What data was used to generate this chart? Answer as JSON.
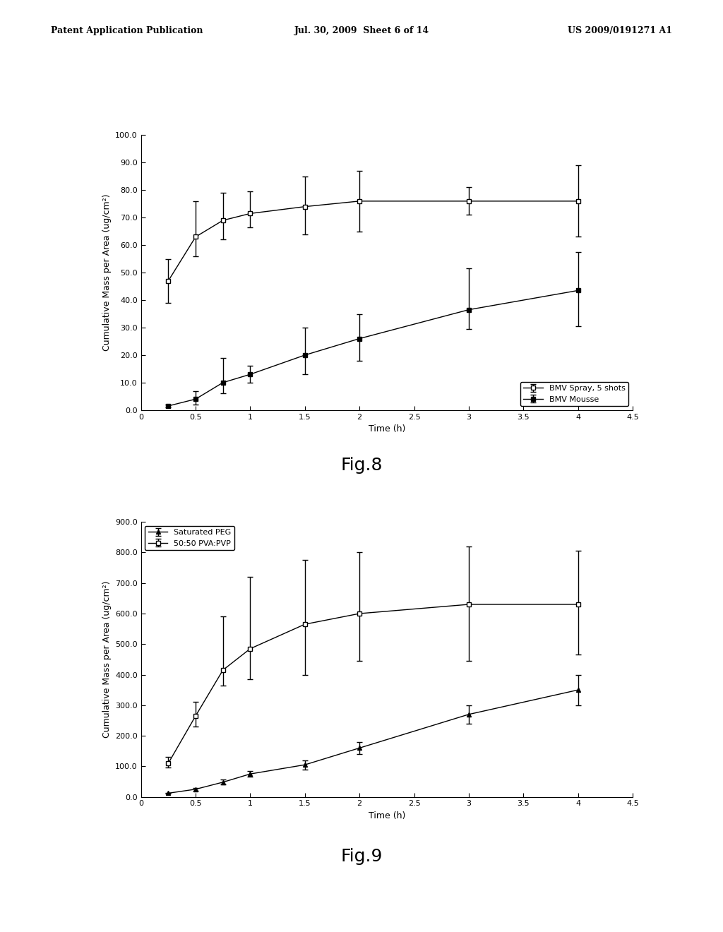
{
  "header_left": "Patent Application Publication",
  "header_center": "Jul. 30, 2009  Sheet 6 of 14",
  "header_right": "US 2009/0191271 A1",
  "fig8": {
    "title": "Fig.8",
    "xlabel": "Time (h)",
    "ylabel": "Cumulative Mass per Area (ug/cm²)",
    "xlim": [
      0,
      4.5
    ],
    "ylim": [
      0,
      100
    ],
    "yticks": [
      0,
      10,
      20,
      30,
      40,
      50,
      60,
      70,
      80,
      90,
      100
    ],
    "ytick_labels": [
      "0.0",
      "10.0",
      "20.0",
      "30.0",
      "40.0",
      "50.0",
      "60.0",
      "70.0",
      "80.0",
      "90.0",
      "100.0"
    ],
    "xticks": [
      0,
      0.5,
      1,
      1.5,
      2,
      2.5,
      3,
      3.5,
      4,
      4.5
    ],
    "xtick_labels": [
      "0",
      "0.5",
      "1",
      "1.5",
      "2",
      "2.5",
      "3",
      "3.5",
      "4",
      "4.5"
    ],
    "series1": {
      "label": "BMV Spray, 5 shots",
      "marker": "s",
      "markerfacecolor": "white",
      "markeredgecolor": "black",
      "color": "black",
      "x": [
        0.25,
        0.5,
        0.75,
        1.0,
        1.5,
        2.0,
        3.0,
        4.0
      ],
      "y": [
        47.0,
        63.0,
        69.0,
        71.5,
        74.0,
        76.0,
        76.0,
        76.0
      ],
      "yerr_low": [
        8.0,
        7.0,
        7.0,
        5.0,
        10.0,
        11.0,
        5.0,
        13.0
      ],
      "yerr_high": [
        8.0,
        13.0,
        10.0,
        8.0,
        11.0,
        11.0,
        5.0,
        13.0
      ]
    },
    "series2": {
      "label": "BMV Mousse",
      "marker": "s",
      "markerfacecolor": "black",
      "markeredgecolor": "black",
      "color": "black",
      "x": [
        0.25,
        0.5,
        0.75,
        1.0,
        1.5,
        2.0,
        3.0,
        4.0
      ],
      "y": [
        1.5,
        4.0,
        10.0,
        13.0,
        20.0,
        26.0,
        36.5,
        43.5
      ],
      "yerr_low": [
        0.5,
        2.0,
        4.0,
        3.0,
        7.0,
        8.0,
        7.0,
        13.0
      ],
      "yerr_high": [
        0.5,
        3.0,
        9.0,
        3.0,
        10.0,
        9.0,
        15.0,
        14.0
      ]
    }
  },
  "fig9": {
    "title": "Fig.9",
    "xlabel": "Time (h)",
    "ylabel": "Cumulative Mass per Area (ug/cm²)",
    "xlim": [
      0,
      4.5
    ],
    "ylim": [
      0,
      900
    ],
    "yticks": [
      0,
      100,
      200,
      300,
      400,
      500,
      600,
      700,
      800,
      900
    ],
    "ytick_labels": [
      "0.0",
      "100.0",
      "200.0",
      "300.0",
      "400.0",
      "500.0",
      "600.0",
      "700.0",
      "800.0",
      "900.0"
    ],
    "xticks": [
      0,
      0.5,
      1,
      1.5,
      2,
      2.5,
      3,
      3.5,
      4,
      4.5
    ],
    "xtick_labels": [
      "0",
      "0.5",
      "1",
      "1.5",
      "2",
      "2.5",
      "3",
      "3.5",
      "4",
      "4.5"
    ],
    "series1": {
      "label": "Saturated PEG",
      "marker": "^",
      "markerfacecolor": "black",
      "markeredgecolor": "black",
      "color": "black",
      "x": [
        0.25,
        0.5,
        0.75,
        1.0,
        1.5,
        2.0,
        3.0,
        4.0
      ],
      "y": [
        12.0,
        25.0,
        48.0,
        75.0,
        105.0,
        160.0,
        270.0,
        350.0
      ],
      "yerr_low": [
        2.0,
        5.0,
        8.0,
        10.0,
        15.0,
        20.0,
        30.0,
        50.0
      ],
      "yerr_high": [
        2.0,
        5.0,
        8.0,
        10.0,
        15.0,
        20.0,
        30.0,
        50.0
      ]
    },
    "series2": {
      "label": "50:50 PVA:PVP",
      "marker": "s",
      "markerfacecolor": "white",
      "markeredgecolor": "black",
      "color": "black",
      "x": [
        0.25,
        0.5,
        0.75,
        1.0,
        1.5,
        2.0,
        3.0,
        4.0
      ],
      "y": [
        110.0,
        265.0,
        415.0,
        485.0,
        565.0,
        600.0,
        630.0,
        630.0
      ],
      "yerr_low": [
        15.0,
        35.0,
        50.0,
        100.0,
        165.0,
        155.0,
        185.0,
        165.0
      ],
      "yerr_high": [
        20.0,
        45.0,
        175.0,
        235.0,
        210.0,
        200.0,
        190.0,
        175.0
      ]
    }
  },
  "bg_color": "#ffffff",
  "plot_bg_color": "#ffffff",
  "text_color": "#000000",
  "header_fontsize": 9,
  "axis_label_fontsize": 9,
  "tick_fontsize": 8,
  "legend_fontsize": 8,
  "fig_caption_fontsize": 18
}
